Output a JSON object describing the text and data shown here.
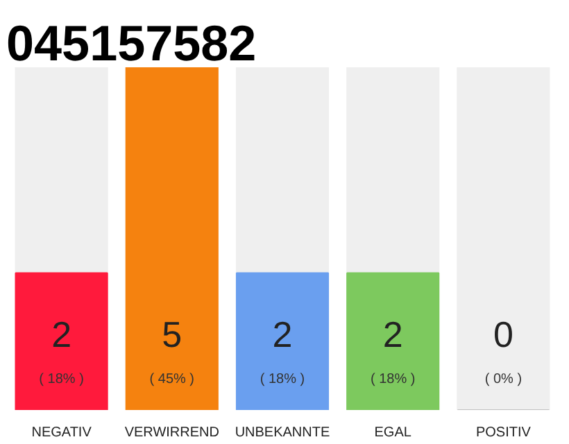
{
  "chart_data": {
    "type": "bar",
    "title": "045157582",
    "categories": [
      "NEGATIV",
      "VERWIRREND",
      "UNBEKANNTE",
      "EGAL",
      "POSITIV"
    ],
    "values": [
      2,
      5,
      2,
      2,
      0
    ],
    "colors": [
      "#ff1a3c",
      "#f5820f",
      "#6a9fef",
      "#7dc95e",
      "#bfbfbf"
    ],
    "ylim": [
      0,
      5
    ],
    "tick_labels": "x",
    "data_labels": true,
    "annotations": [
      "( 18% )",
      "( 45% )",
      "( 18% )",
      "( 18% )",
      "( 0% )"
    ]
  }
}
